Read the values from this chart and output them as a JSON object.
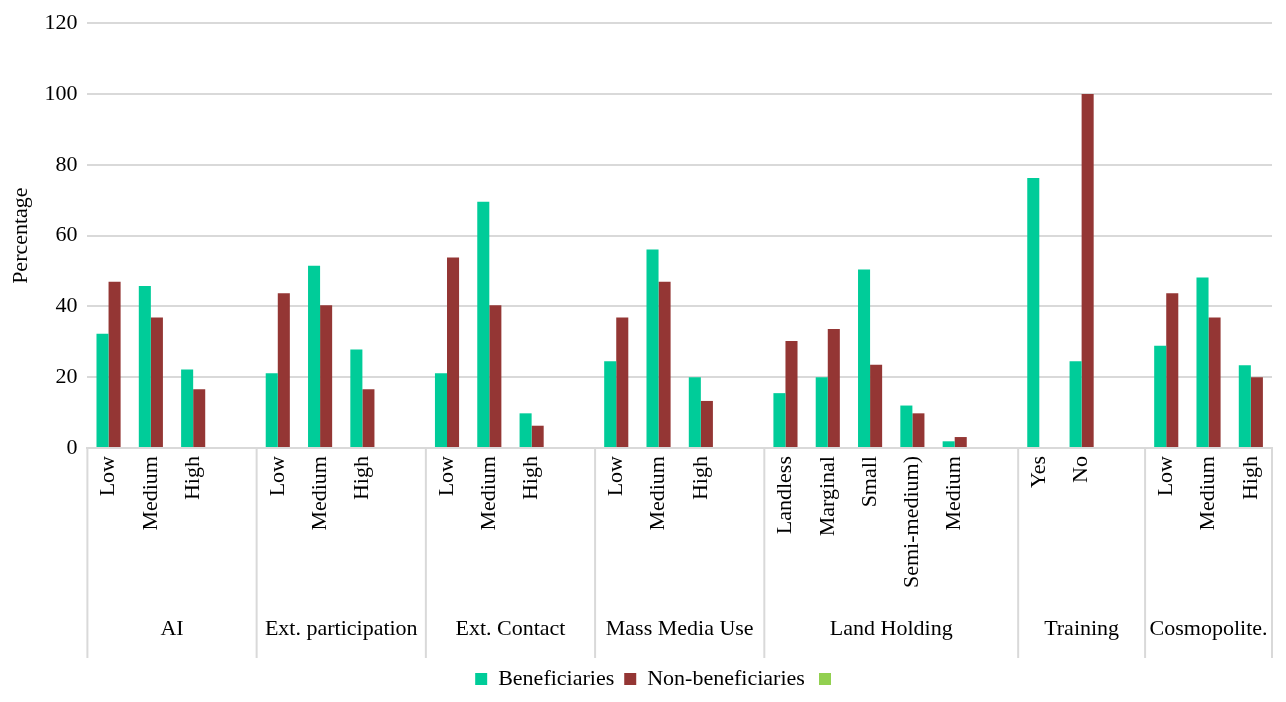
{
  "chart_data": {
    "type": "bar",
    "ylabel": "Percentage",
    "categories": [
      "Low",
      "Medium",
      "High",
      null,
      "Low",
      "Medium",
      "High",
      null,
      "Low",
      "Medium",
      "High",
      null,
      "Low",
      "Medium",
      "High",
      null,
      "Landless",
      "Marginal",
      "Small",
      "Semi-medium)",
      "Medium",
      null,
      "Yes",
      "No",
      null,
      "Low",
      "Medium",
      "High"
    ],
    "series": [
      {
        "name": "Beneficiaries",
        "color": "#00cc99",
        "values": [
          32.3,
          45.8,
          22.2,
          null,
          21.1,
          51.5,
          27.8,
          null,
          21.1,
          69.6,
          9.8,
          null,
          24.5,
          56.1,
          20.0,
          null,
          15.5,
          20.0,
          50.4,
          12.0,
          1.9,
          null,
          76.3,
          24.5,
          null,
          28.9,
          48.2,
          23.4
        ]
      },
      {
        "name": "Non-beneficiaries",
        "color": "#943634",
        "values": [
          47.0,
          36.9,
          16.6,
          null,
          43.7,
          40.3,
          16.6,
          null,
          53.8,
          40.3,
          6.3,
          null,
          36.9,
          47.0,
          13.3,
          null,
          30.2,
          33.6,
          23.5,
          9.8,
          3.1,
          null,
          null,
          100,
          null,
          43.7,
          36.9,
          20.0
        ]
      }
    ],
    "annotations": [
      "AI",
      "Ext. participation",
      "Ext. Contact",
      "Mass Media Use",
      "Land Holding",
      "Training",
      "Cosmopolite."
    ],
    "ylim": [
      0,
      120
    ],
    "yticks": [
      0,
      20,
      40,
      60,
      80,
      100,
      120
    ],
    "grid": "y",
    "legend": "bottom"
  }
}
